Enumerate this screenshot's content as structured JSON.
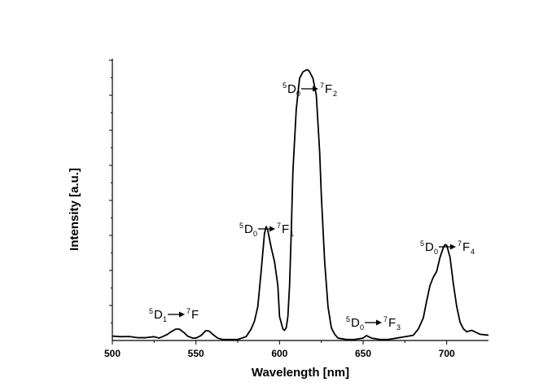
{
  "chart_data": {
    "type": "line",
    "title": "",
    "xlabel": "Wavelength [nm]",
    "ylabel": "Intensity [a.u.]",
    "xlim": [
      500,
      725
    ],
    "ylim": [
      0,
      1.0
    ],
    "x_ticks": [
      "500",
      "550",
      "600",
      "650",
      "700"
    ],
    "grid": false,
    "legend": "none",
    "line_color": "#000000",
    "series": [
      {
        "x": [
          500,
          505,
          510,
          515,
          520,
          525,
          528,
          530,
          533,
          535,
          538,
          540,
          543,
          545,
          548,
          550,
          553,
          556,
          558,
          560,
          563,
          566,
          570,
          575,
          580,
          583,
          585,
          587,
          589,
          591,
          592,
          593,
          595,
          597,
          599,
          600,
          602,
          603,
          604,
          605,
          606,
          607,
          608,
          610,
          612,
          614,
          616,
          617,
          618,
          620,
          622,
          624,
          625,
          627,
          629,
          631,
          633,
          635,
          640,
          645,
          650,
          652,
          655,
          660,
          665,
          670,
          675,
          680,
          683,
          686,
          688,
          690,
          692,
          694,
          696,
          698,
          699,
          700,
          702,
          704,
          706,
          708,
          710,
          712,
          715,
          720,
          725
        ],
        "y": [
          0.0155,
          0.0135,
          0.014,
          0.01,
          0.01,
          0.0135,
          0.0085,
          0.0135,
          0.022,
          0.0305,
          0.0405,
          0.0405,
          0.0275,
          0.0155,
          0.0085,
          0.0085,
          0.0175,
          0.0355,
          0.033,
          0.022,
          0.0085,
          0.0035,
          0.0035,
          0.0035,
          0.0135,
          0.0405,
          0.0685,
          0.12,
          0.245,
          0.38,
          0.404,
          0.39,
          0.33,
          0.28,
          0.195,
          0.085,
          0.041,
          0.036,
          0.045,
          0.085,
          0.195,
          0.38,
          0.6,
          0.82,
          0.93,
          0.953,
          0.96,
          0.96,
          0.953,
          0.93,
          0.87,
          0.67,
          0.515,
          0.28,
          0.12,
          0.045,
          0.022,
          0.0085,
          0.0035,
          0.0035,
          0.0085,
          0.0175,
          0.0085,
          0.0035,
          0.0035,
          0.0085,
          0.0135,
          0.0185,
          0.0405,
          0.08,
          0.14,
          0.195,
          0.225,
          0.245,
          0.295,
          0.33,
          0.34,
          0.338,
          0.295,
          0.2,
          0.12,
          0.065,
          0.041,
          0.031,
          0.036,
          0.022,
          0.019
        ]
      }
    ],
    "annotations": [
      {
        "pre_sup": "5",
        "main": "D",
        "sub": "1",
        "post_sup": "7",
        "post_main": "F",
        "post_sub": ""
      },
      {
        "pre_sup": "5",
        "main": "D",
        "sub": "0",
        "post_sup": "7",
        "post_main": "F",
        "post_sub": "1"
      },
      {
        "pre_sup": "5",
        "main": "D",
        "sub": "0",
        "post_sup": "7",
        "post_main": "F",
        "post_sub": "2"
      },
      {
        "pre_sup": "5",
        "main": "D",
        "sub": "0",
        "post_sup": "7",
        "post_main": "F",
        "post_sub": "3"
      },
      {
        "pre_sup": "5",
        "main": "D",
        "sub": "0",
        "post_sup": "7",
        "post_main": "F",
        "post_sub": "4"
      }
    ]
  }
}
